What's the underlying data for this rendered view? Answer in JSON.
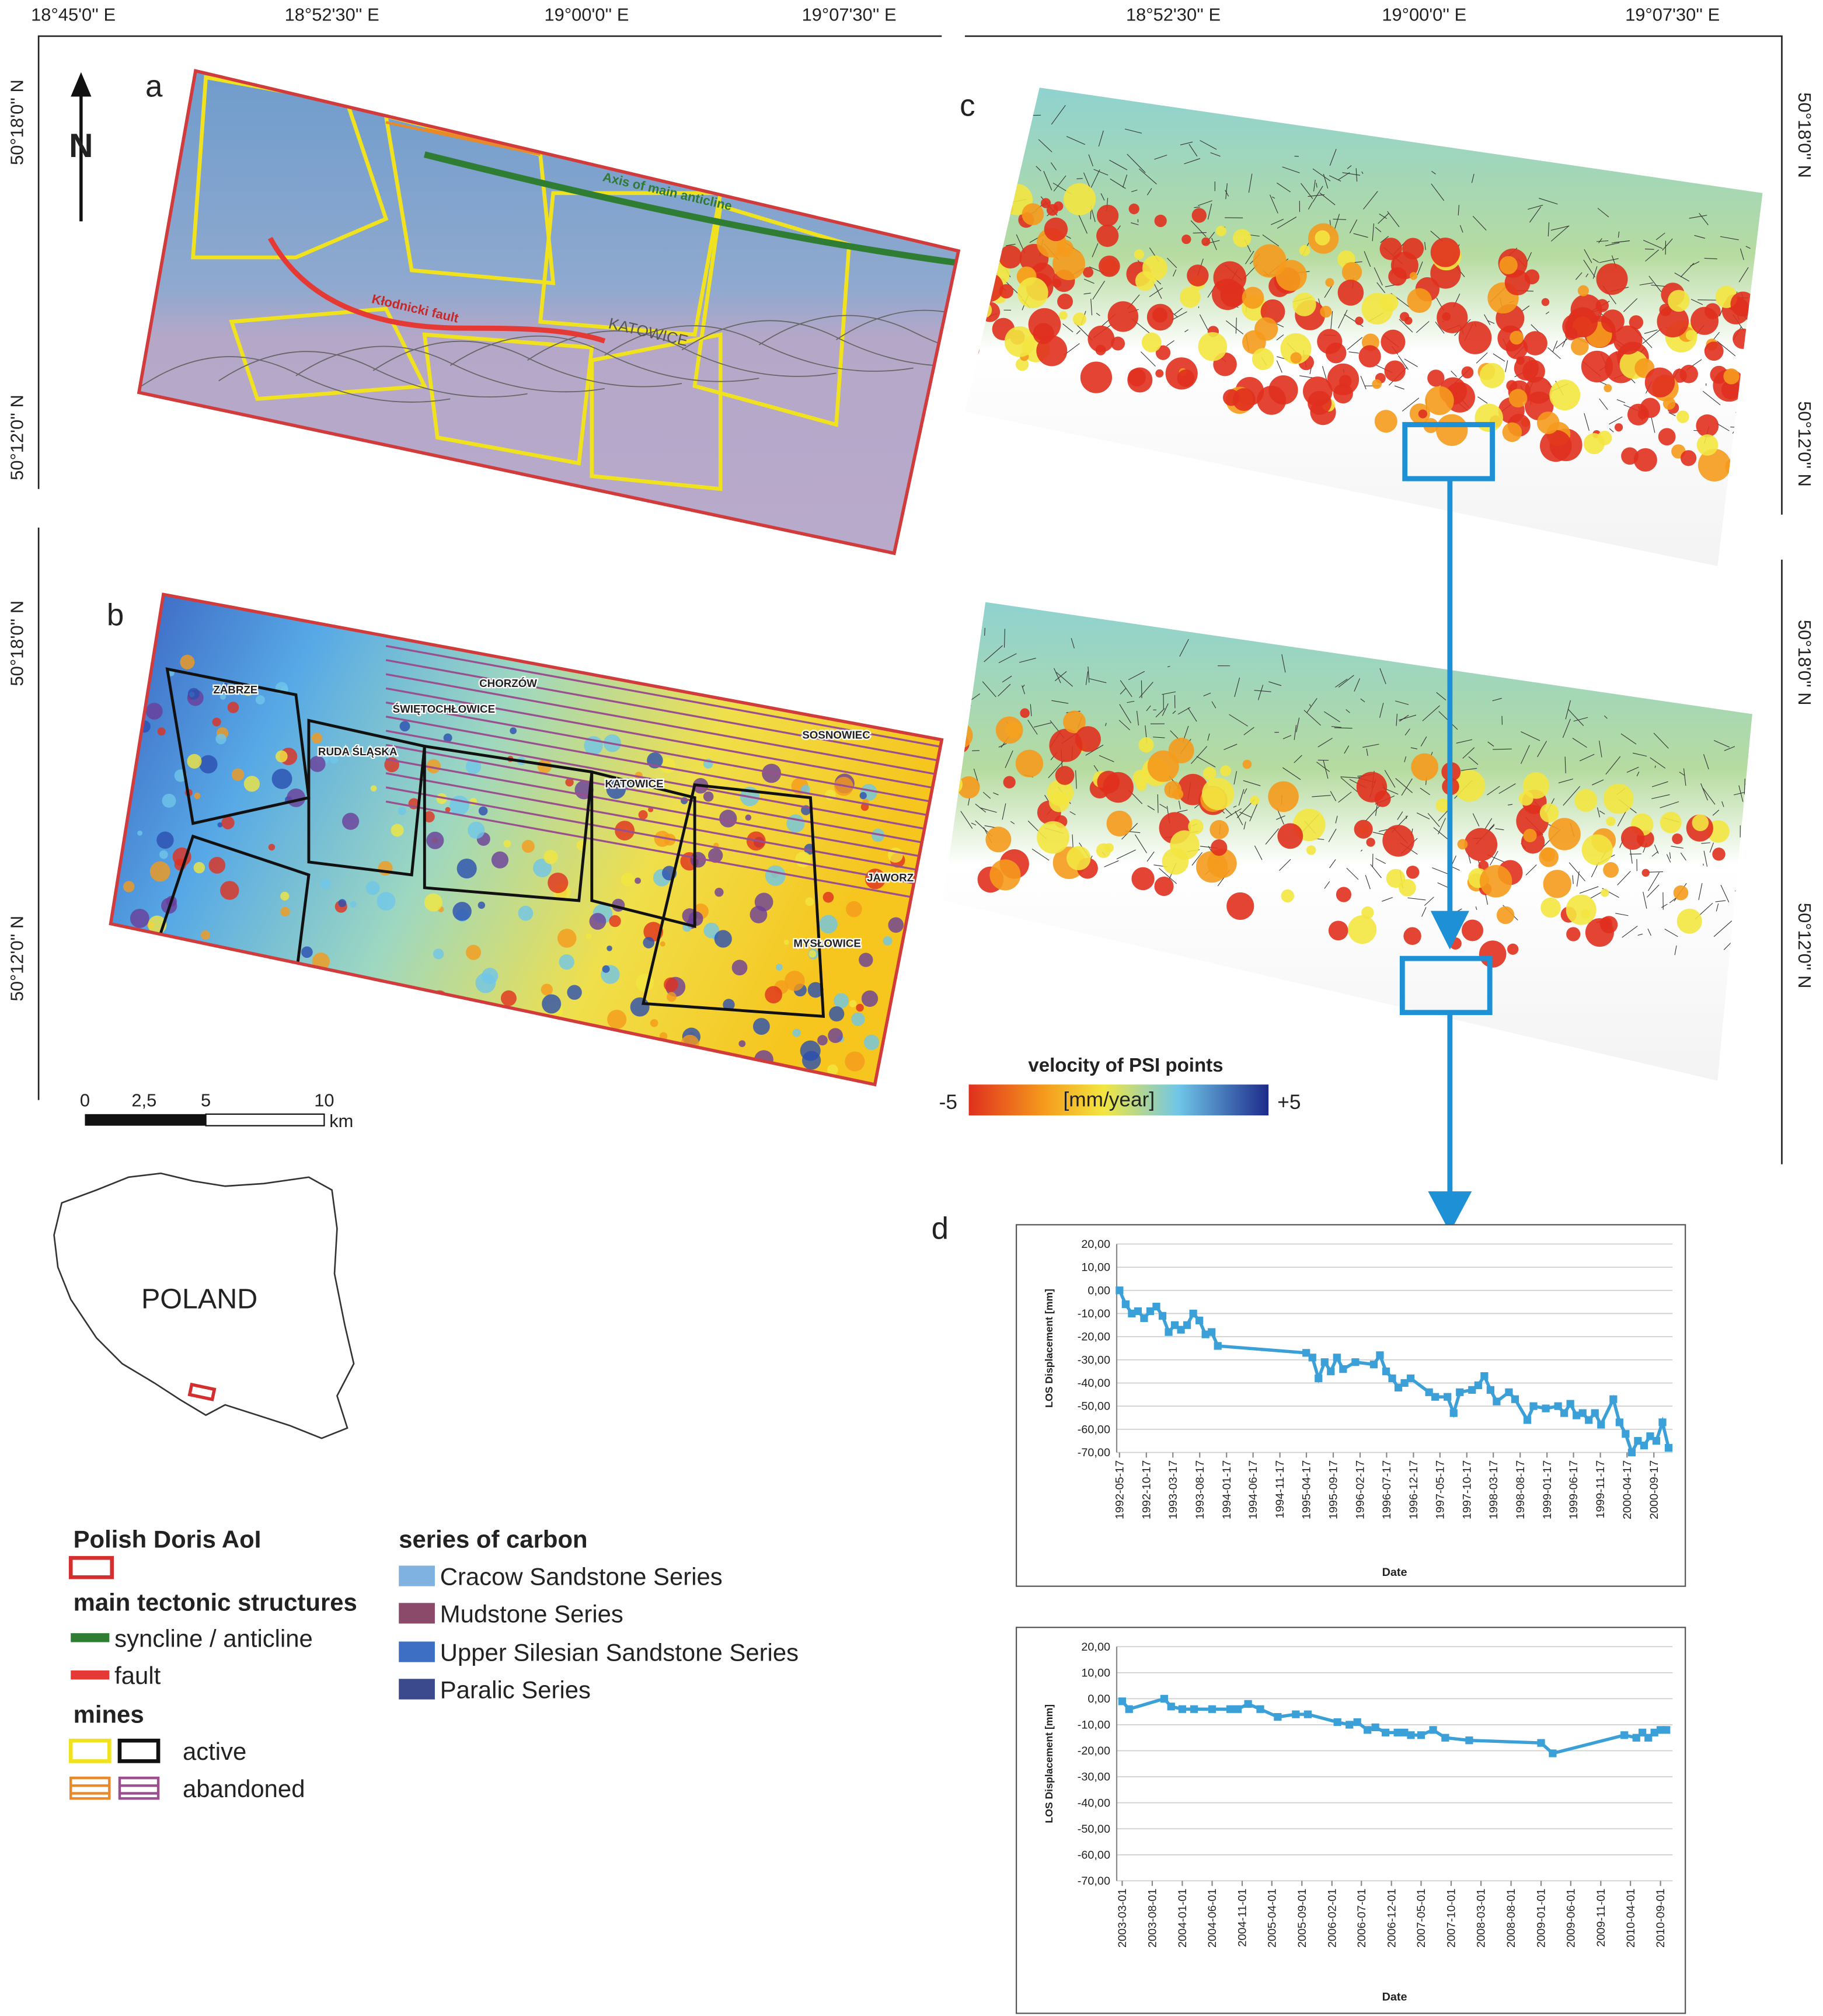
{
  "figure": {
    "top_longitudes_left": [
      "18°45'0'' E",
      "18°52'30'' E",
      "19°00'0'' E",
      "19°07'30'' E"
    ],
    "top_longitudes_right": [
      "18°52'30'' E",
      "19°00'0'' E",
      "19°07'30'' E"
    ],
    "latitudes_left": [
      "50°18'0'' N",
      "50°12'0'' N",
      "50°18'0'' N",
      "50°12'0'' N"
    ],
    "latitudes_right": [
      "50°18'0'' N",
      "50°12'0'' N",
      "50°18'0'' N",
      "50°12'0'' N"
    ],
    "north": "N",
    "panels": [
      "a",
      "b",
      "c",
      "d"
    ],
    "map_a_labels": [
      "Axis of main anticline",
      "Kłodnicki fault",
      "KATOWICE"
    ],
    "map_b_labels": [
      "ZABRZE",
      "CHORZÓW",
      "ŚWIĘTOCHŁOWICE",
      "RUDA ŚLĄSKA",
      "SOSNOWIEC",
      "KATOWICE",
      "JAWORZ",
      "MYSŁOWICE"
    ],
    "scale_bar": [
      "0",
      "2,5",
      "5",
      "10",
      "km"
    ],
    "colorbar": {
      "title": "velocity of PSI points",
      "min": "-5",
      "unit": "[mm/year]",
      "max": "+5"
    },
    "inset": "POLAND"
  },
  "legend": {
    "aoi_title": "Polish Doris AoI",
    "tectonic_title": "main tectonic structures",
    "syncline": "syncline / anticline",
    "fault": "fault",
    "mines_title": "mines",
    "active": "active",
    "abandoned": "abandoned",
    "series_title": "series of carbon",
    "series": [
      "Cracow Sandstone Series",
      "Mudstone Series",
      "Upper Silesian Sandstone Series",
      "Paralic Series"
    ]
  },
  "chart_data": [
    {
      "type": "line",
      "y_label": "LOS Displacement [mm]",
      "x_label": "Date",
      "color": "#3ca0d8",
      "grid": true,
      "xlim": [
        "1992-05-01",
        "2001-01-01"
      ],
      "xticks": [
        "1992-05-17",
        "1992-10-17",
        "1993-03-17",
        "1993-08-17",
        "1994-01-17",
        "1994-06-17",
        "1994-11-17",
        "1995-04-17",
        "1995-09-17",
        "1996-02-17",
        "1996-07-17",
        "1996-12-17",
        "1997-05-17",
        "1997-10-17",
        "1998-03-17",
        "1998-08-17",
        "1999-01-17",
        "1999-06-17",
        "1999-11-17",
        "2000-04-17",
        "2000-09-17"
      ],
      "ylim": [
        -70,
        20
      ],
      "yticks": [
        {
          "value": 20,
          "label": "20,00"
        },
        {
          "value": 10,
          "label": "10,00"
        },
        {
          "value": 0,
          "label": "0,00"
        },
        {
          "value": -10,
          "label": "-10,00"
        },
        {
          "value": -20,
          "label": "-20,00"
        },
        {
          "value": -30,
          "label": "-30,00"
        },
        {
          "value": -40,
          "label": "-40,00"
        },
        {
          "value": -50,
          "label": "-50,00"
        },
        {
          "value": -60,
          "label": "-60,00"
        },
        {
          "value": -70,
          "label": "-70,00"
        }
      ],
      "x": [
        "1992-05-17",
        "1992-06-21",
        "1992-07-26",
        "1992-08-30",
        "1992-10-04",
        "1992-11-08",
        "1992-12-13",
        "1993-01-17",
        "1993-02-21",
        "1993-03-28",
        "1993-05-02",
        "1993-06-06",
        "1993-07-11",
        "1993-08-15",
        "1993-09-19",
        "1993-10-24",
        "1993-11-28",
        "1995-04-16",
        "1995-05-21",
        "1995-06-25",
        "1995-07-30",
        "1995-09-03",
        "1995-10-08",
        "1995-11-12",
        "1996-01-21",
        "1996-05-05",
        "1996-06-09",
        "1996-07-14",
        "1996-08-18",
        "1996-09-22",
        "1996-10-27",
        "1996-12-01",
        "1997-03-16",
        "1997-04-20",
        "1997-06-29",
        "1997-08-03",
        "1997-09-07",
        "1997-11-16",
        "1997-12-21",
        "1998-01-25",
        "1998-03-01",
        "1998-04-05",
        "1998-06-14",
        "1998-07-19",
        "1998-09-27",
        "1998-11-01",
        "1999-01-10",
        "1999-03-21",
        "1999-04-25",
        "1999-05-30",
        "1999-07-04",
        "1999-08-08",
        "1999-09-12",
        "1999-10-17",
        "1999-11-21",
        "2000-01-30",
        "2000-03-05",
        "2000-04-09",
        "2000-05-14",
        "2000-06-18",
        "2000-07-23",
        "2000-08-27",
        "2000-10-01",
        "2000-11-05",
        "2000-12-10"
      ],
      "values": [
        0,
        -6,
        -10,
        -9,
        -12,
        -9,
        -7,
        -11,
        -18,
        -15,
        -17,
        -15,
        -10,
        -13,
        -19,
        -18,
        -24,
        -27,
        -29,
        -38,
        -31,
        -35,
        -29,
        -34,
        -31,
        -32,
        -28,
        -35,
        -38,
        -42,
        -40,
        -38,
        -44,
        -46,
        -46,
        -53,
        -44,
        -43,
        -41,
        -37,
        -43,
        -48,
        -44,
        -47,
        -56,
        -50,
        -51,
        -50,
        -53,
        -49,
        -54,
        -53,
        -56,
        -53,
        -58,
        -47,
        -57,
        -62,
        -70,
        -65,
        -67,
        -63,
        -65,
        -57,
        -68
      ]
    },
    {
      "type": "line",
      "y_label": "LOS Displacement [mm]",
      "x_label": "Date",
      "color": "#3ca0d8",
      "grid": true,
      "xlim": [
        "2003-02-01",
        "2010-11-01"
      ],
      "xticks": [
        "2003-03-01",
        "2003-08-01",
        "2004-01-01",
        "2004-06-01",
        "2004-11-01",
        "2005-04-01",
        "2005-09-01",
        "2006-02-01",
        "2006-07-01",
        "2006-12-01",
        "2007-05-01",
        "2007-10-01",
        "2008-03-01",
        "2008-08-01",
        "2009-01-01",
        "2009-06-01",
        "2009-11-01",
        "2010-04-01",
        "2010-09-01"
      ],
      "ylim": [
        -70,
        20
      ],
      "yticks": [
        {
          "value": 20,
          "label": "20,00"
        },
        {
          "value": 10,
          "label": "10,00"
        },
        {
          "value": 0,
          "label": "0,00"
        },
        {
          "value": -10,
          "label": "-10,00"
        },
        {
          "value": -20,
          "label": "-20,00"
        },
        {
          "value": -30,
          "label": "-30,00"
        },
        {
          "value": -40,
          "label": "-40,00"
        },
        {
          "value": -50,
          "label": "-50,00"
        },
        {
          "value": -60,
          "label": "-60,00"
        },
        {
          "value": -70,
          "label": "-70,00"
        }
      ],
      "x": [
        "2003-03-01",
        "2003-04-05",
        "2003-10-01",
        "2003-11-05",
        "2004-01-01",
        "2004-03-01",
        "2004-06-01",
        "2004-09-01",
        "2004-10-10",
        "2004-12-01",
        "2005-02-01",
        "2005-05-01",
        "2005-08-01",
        "2005-10-01",
        "2006-03-01",
        "2006-05-01",
        "2006-06-10",
        "2006-08-01",
        "2006-09-10",
        "2006-11-01",
        "2007-01-01",
        "2007-02-05",
        "2007-03-10",
        "2007-05-01",
        "2007-07-01",
        "2007-09-01",
        "2008-01-01",
        "2009-01-01",
        "2009-03-01",
        "2010-03-01",
        "2010-05-01",
        "2010-06-01",
        "2010-07-01",
        "2010-08-01",
        "2010-09-01",
        "2010-10-01"
      ],
      "values": [
        -1,
        -4,
        0,
        -3,
        -4,
        -4,
        -4,
        -4,
        -4,
        -2,
        -4,
        -7,
        -6,
        -6,
        -9,
        -10,
        -9,
        -12,
        -11,
        -13,
        -13,
        -13,
        -14,
        -14,
        -12,
        -15,
        -16,
        -17,
        -21,
        -14,
        -15,
        -13,
        -15,
        -13,
        -12,
        -12
      ]
    }
  ]
}
